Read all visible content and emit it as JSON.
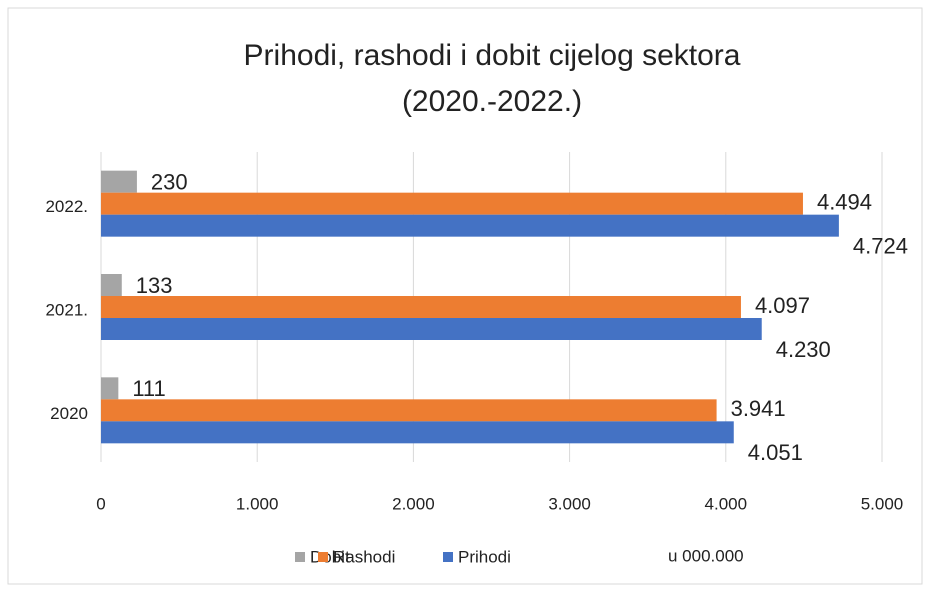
{
  "chart_data": {
    "type": "bar",
    "orientation": "horizontal",
    "title_lines": [
      "Prihodi, rashodi i dobit cijelog sektora",
      "(2020.-2022.)"
    ],
    "categories": [
      "2022.",
      "2021.",
      "2020"
    ],
    "series": [
      {
        "name": "Dobit",
        "color": "#a5a5a5",
        "values": [
          230,
          133,
          111
        ]
      },
      {
        "name": "Rashodi",
        "color": "#ed7d31",
        "values": [
          4494,
          4097,
          3941
        ],
        "value_labels": [
          "4.494",
          "4.097",
          "3.941"
        ]
      },
      {
        "name": "Prihodi",
        "color": "#4472c4",
        "values": [
          4724,
          4230,
          4051
        ],
        "value_labels": [
          "4.724",
          "4.230",
          "4.051"
        ]
      }
    ],
    "xlim": [
      0,
      5000
    ],
    "xticks": [
      0,
      {
        "value": 1000,
        "label": "1.000"
      },
      {
        "value": 2000,
        "label": "2.000"
      },
      {
        "value": 3000,
        "label": "3.000"
      },
      {
        "value": 4000,
        "label": "4.000"
      },
      {
        "value": 5000,
        "label": "5.000"
      }
    ],
    "grid": true,
    "legend": "bottom",
    "annotation": "u 000.000"
  }
}
